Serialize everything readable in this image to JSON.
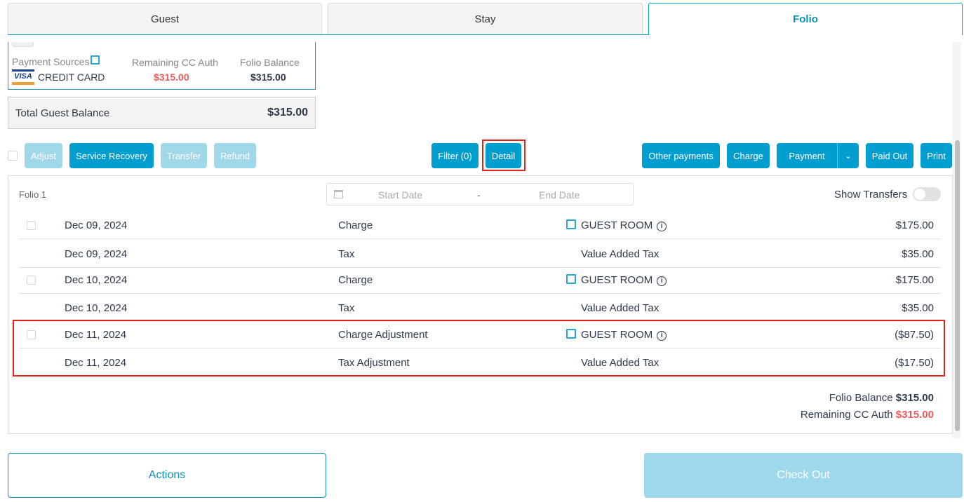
{
  "tabs": [
    {
      "label": "Guest"
    },
    {
      "label": "Stay"
    },
    {
      "label": "Folio",
      "active": true
    }
  ],
  "summary": {
    "payment_sources_label": "Payment Sources",
    "card_brand": "VISA",
    "card_label": "CREDIT CARD",
    "remaining_label": "Remaining CC Auth",
    "remaining_value": "$315.00",
    "folio_balance_label": "Folio Balance",
    "folio_balance_value": "$315.00",
    "total_label": "Total Guest Balance",
    "total_value": "$315.00"
  },
  "toolbar": {
    "adjust": "Adjust",
    "service_recovery": "Service Recovery",
    "transfer": "Transfer",
    "refund": "Refund",
    "filter": "Filter (0)",
    "detail": "Detail",
    "other_payments": "Other payments",
    "charge": "Charge",
    "payment": "Payment",
    "paid_out": "Paid Out",
    "print": "Print"
  },
  "folio": {
    "name": "Folio 1",
    "start_placeholder": "Start Date",
    "end_placeholder": "End Date",
    "date_separator": "-",
    "show_transfers": "Show Transfers",
    "show_transfers_on": false,
    "rows": [
      {
        "date": "Dec 09, 2024",
        "type": "Charge",
        "desc": "GUEST ROOM",
        "amount": "$175.00",
        "checkbox": true
      },
      {
        "date": "Dec 09, 2024",
        "type": "Tax",
        "desc": "Value Added Tax",
        "amount": "$35.00",
        "checkbox": false
      },
      {
        "date": "Dec 10, 2024",
        "type": "Charge",
        "desc": "GUEST ROOM",
        "amount": "$175.00",
        "checkbox": true
      },
      {
        "date": "Dec 10, 2024",
        "type": "Tax",
        "desc": "Value Added Tax",
        "amount": "$35.00",
        "checkbox": false
      },
      {
        "date": "Dec 11, 2024",
        "type": "Charge Adjustment",
        "desc": "GUEST ROOM",
        "amount": "($87.50)",
        "checkbox": true
      },
      {
        "date": "Dec 11, 2024",
        "type": "Tax Adjustment",
        "desc": "Value Added Tax",
        "amount": "($17.50)",
        "checkbox": false
      }
    ],
    "balance_label": "Folio Balance",
    "balance_value": "$315.00",
    "remaining_label": "Remaining CC Auth",
    "remaining_value": "$315.00"
  },
  "footer": {
    "actions": "Actions",
    "checkout": "Check Out"
  },
  "colors": {
    "accent": "#029ecf",
    "negative": "#f05a5a",
    "highlight": "#e0231c"
  }
}
